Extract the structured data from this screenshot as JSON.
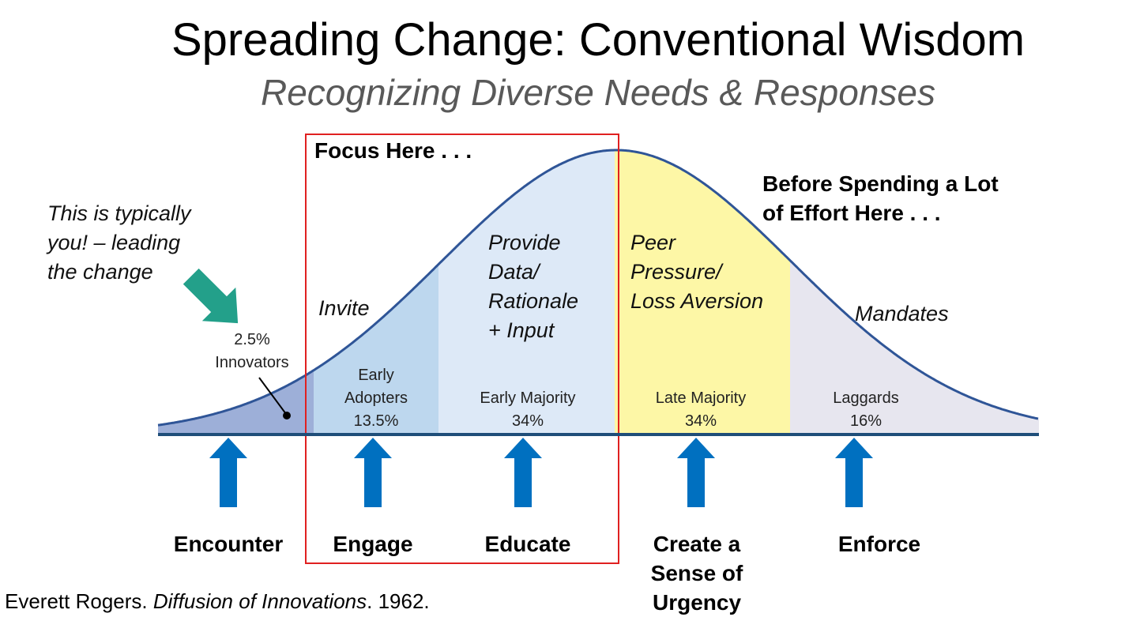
{
  "title": "Spreading Change:  Conventional Wisdom",
  "subtitle": "Recognizing Diverse Needs & Responses",
  "focus_note": "Focus Here . . .",
  "before_note": [
    "Before Spending a Lot",
    "of Effort Here . . ."
  ],
  "callout": [
    "This is typically",
    "you! – leading",
    "the change"
  ],
  "segments": [
    {
      "lines": [
        "2.5%",
        "Innovators"
      ]
    },
    {
      "lines": [
        "Early",
        "Adopters",
        "13.5%"
      ]
    },
    {
      "lines": [
        "Early Majority",
        "34%"
      ]
    },
    {
      "lines": [
        "Late Majority",
        "34%"
      ]
    },
    {
      "lines": [
        "Laggards",
        "16%"
      ]
    }
  ],
  "approaches": [
    {
      "lines": [
        "Invite"
      ]
    },
    {
      "lines": [
        "Provide",
        "Data/",
        "Rationale",
        "+ Input"
      ]
    },
    {
      "lines": [
        "Peer",
        "Pressure/",
        "Loss Aversion"
      ]
    },
    {
      "lines": [
        "Mandates"
      ]
    }
  ],
  "stages": [
    {
      "lines": [
        "Encounter"
      ]
    },
    {
      "lines": [
        "Engage"
      ]
    },
    {
      "lines": [
        "Educate"
      ]
    },
    {
      "lines": [
        "Create a",
        "Sense of",
        "Urgency"
      ]
    },
    {
      "lines": [
        "Enforce"
      ]
    }
  ],
  "citation": {
    "author": "Everett Rogers. ",
    "work": "Diffusion of Innovations",
    "year": ". 1962."
  }
}
